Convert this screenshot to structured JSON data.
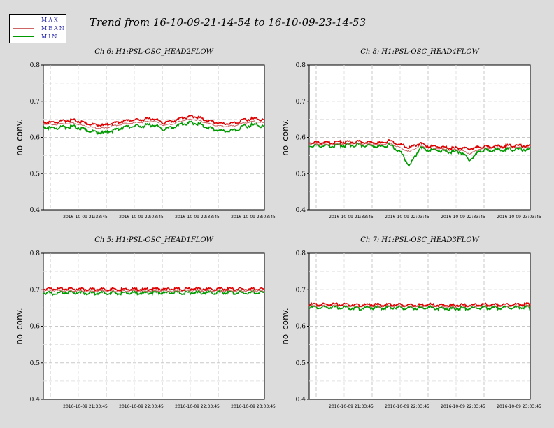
{
  "legend": {
    "entries": [
      {
        "label": "MAX",
        "color": "#dd0000"
      },
      {
        "label": "MEAN",
        "color": "#cc6666"
      },
      {
        "label": "MIN",
        "color": "#009900"
      }
    ]
  },
  "title": "Trend from 16-10-09-21-14-54 to 16-10-09-23-14-53",
  "colors": {
    "max": "#dd0000",
    "mean": "#cc6666",
    "min": "#009900",
    "grid": "#c8c8c8"
  },
  "chart_data": [
    {
      "type": "line",
      "title": "Ch 6: H1:PSL-OSC_HEAD2FLOW",
      "ylabel": "no_conv.",
      "ylim": [
        0.4,
        0.8
      ],
      "yticks": [
        "0.4",
        "0.5",
        "0.6",
        "0.7",
        "0.8"
      ],
      "xticks": [
        "2016-10-09 21:33:45",
        "2016-10-09 22:03:45",
        "2016-10-09 22:33:45",
        "2016-10-09 23:03:45"
      ],
      "grid": true,
      "series": [
        {
          "name": "MAX",
          "values": [
            0.643,
            0.641,
            0.645,
            0.648,
            0.64,
            0.635,
            0.633,
            0.64,
            0.645,
            0.647,
            0.65,
            0.652,
            0.64,
            0.645,
            0.655,
            0.658,
            0.65,
            0.642,
            0.638,
            0.64,
            0.648,
            0.652,
            0.648
          ]
        },
        {
          "name": "MEAN",
          "values": [
            0.637,
            0.635,
            0.638,
            0.64,
            0.632,
            0.627,
            0.625,
            0.632,
            0.638,
            0.64,
            0.642,
            0.645,
            0.633,
            0.638,
            0.648,
            0.65,
            0.642,
            0.634,
            0.63,
            0.632,
            0.64,
            0.644,
            0.64
          ]
        },
        {
          "name": "MIN",
          "values": [
            0.63,
            0.625,
            0.628,
            0.63,
            0.622,
            0.615,
            0.612,
            0.62,
            0.628,
            0.63,
            0.632,
            0.635,
            0.622,
            0.628,
            0.638,
            0.64,
            0.632,
            0.622,
            0.618,
            0.62,
            0.63,
            0.635,
            0.63
          ]
        }
      ]
    },
    {
      "type": "line",
      "title": "Ch 8: H1:PSL-OSC_HEAD4FLOW",
      "ylabel": "no_conv.",
      "ylim": [
        0.4,
        0.8
      ],
      "yticks": [
        "0.4",
        "0.5",
        "0.6",
        "0.7",
        "0.8"
      ],
      "xticks": [
        "2016-10-09 21:33:45",
        "2016-10-09 22:03:45",
        "2016-10-09 22:33:45",
        "2016-10-09 23:03:45"
      ],
      "grid": true,
      "series": [
        {
          "name": "MAX",
          "values": [
            0.587,
            0.586,
            0.585,
            0.587,
            0.587,
            0.588,
            0.586,
            0.585,
            0.59,
            0.58,
            0.572,
            0.583,
            0.575,
            0.574,
            0.57,
            0.571,
            0.568,
            0.574,
            0.575,
            0.576,
            0.577,
            0.577,
            0.576
          ]
        },
        {
          "name": "MEAN",
          "values": [
            0.582,
            0.581,
            0.58,
            0.582,
            0.582,
            0.583,
            0.581,
            0.58,
            0.584,
            0.572,
            0.56,
            0.577,
            0.57,
            0.569,
            0.565,
            0.566,
            0.555,
            0.569,
            0.57,
            0.571,
            0.572,
            0.572,
            0.571
          ]
        },
        {
          "name": "MIN",
          "values": [
            0.578,
            0.577,
            0.576,
            0.578,
            0.578,
            0.579,
            0.577,
            0.575,
            0.578,
            0.562,
            0.522,
            0.57,
            0.565,
            0.564,
            0.56,
            0.561,
            0.537,
            0.564,
            0.565,
            0.566,
            0.567,
            0.567,
            0.566
          ]
        }
      ]
    },
    {
      "type": "line",
      "title": "Ch 5: H1:PSL-OSC_HEAD1FLOW",
      "ylabel": "no_conv.",
      "ylim": [
        0.4,
        0.8
      ],
      "yticks": [
        "0.4",
        "0.5",
        "0.6",
        "0.7",
        "0.8"
      ],
      "xticks": [
        "2016-10-09 21:33:45",
        "2016-10-09 22:03:45",
        "2016-10-09 22:33:45",
        "2016-10-09 23:03:45"
      ],
      "grid": true,
      "series": [
        {
          "name": "MAX",
          "values": [
            0.702,
            0.703,
            0.702,
            0.702,
            0.701,
            0.701,
            0.702,
            0.701,
            0.701,
            0.702,
            0.701,
            0.702,
            0.702,
            0.701,
            0.702,
            0.703,
            0.702,
            0.702,
            0.702,
            0.702,
            0.702,
            0.702,
            0.701
          ]
        },
        {
          "name": "MEAN",
          "values": [
            0.697,
            0.698,
            0.697,
            0.697,
            0.696,
            0.696,
            0.697,
            0.696,
            0.696,
            0.697,
            0.696,
            0.697,
            0.697,
            0.696,
            0.697,
            0.698,
            0.697,
            0.697,
            0.697,
            0.697,
            0.697,
            0.697,
            0.696
          ]
        },
        {
          "name": "MIN",
          "values": [
            0.692,
            0.69,
            0.692,
            0.692,
            0.691,
            0.69,
            0.692,
            0.691,
            0.691,
            0.692,
            0.691,
            0.692,
            0.692,
            0.691,
            0.692,
            0.692,
            0.692,
            0.692,
            0.692,
            0.692,
            0.692,
            0.692,
            0.691
          ]
        }
      ]
    },
    {
      "type": "line",
      "title": "Ch 7: H1:PSL-OSC_HEAD3FLOW",
      "ylabel": "no_conv.",
      "ylim": [
        0.4,
        0.8
      ],
      "yticks": [
        "0.4",
        "0.5",
        "0.6",
        "0.7",
        "0.8"
      ],
      "xticks": [
        "2016-10-09 21:33:45",
        "2016-10-09 22:03:45",
        "2016-10-09 22:33:45",
        "2016-10-09 23:03:45"
      ],
      "grid": true,
      "series": [
        {
          "name": "MAX",
          "values": [
            0.66,
            0.659,
            0.66,
            0.66,
            0.659,
            0.658,
            0.659,
            0.658,
            0.659,
            0.659,
            0.658,
            0.658,
            0.659,
            0.658,
            0.657,
            0.658,
            0.658,
            0.659,
            0.659,
            0.659,
            0.659,
            0.66,
            0.66
          ]
        },
        {
          "name": "MEAN",
          "values": [
            0.656,
            0.655,
            0.656,
            0.656,
            0.655,
            0.654,
            0.655,
            0.654,
            0.655,
            0.655,
            0.654,
            0.654,
            0.655,
            0.654,
            0.653,
            0.654,
            0.654,
            0.655,
            0.655,
            0.655,
            0.655,
            0.656,
            0.656
          ]
        },
        {
          "name": "MIN",
          "values": [
            0.652,
            0.651,
            0.652,
            0.652,
            0.65,
            0.649,
            0.651,
            0.65,
            0.651,
            0.651,
            0.65,
            0.65,
            0.651,
            0.649,
            0.648,
            0.649,
            0.65,
            0.651,
            0.651,
            0.651,
            0.651,
            0.652,
            0.652
          ]
        }
      ]
    }
  ]
}
